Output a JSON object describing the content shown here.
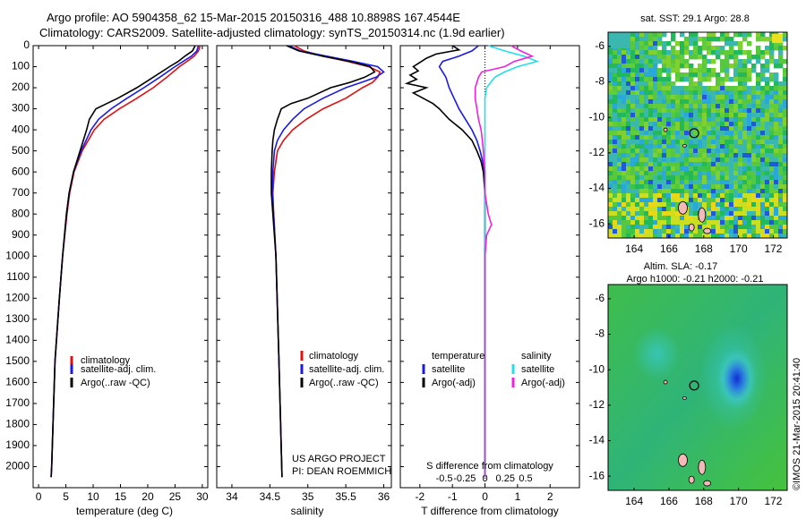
{
  "header": {
    "line1": "Argo profile: AO 5904358_62 15-Mar-2015 20150316_488 10.8898S 167.4544E",
    "line2": "Climatology: CARS2009. Satellite-adjusted climatology: synTS_20150314.nc (1.9d earlier)"
  },
  "footer": {
    "project": "US ARGO PROJECT",
    "pi": "PI: DEAN ROEMMICH",
    "imos": "©IMOS 21-Mar-2015 20:41:40"
  },
  "colors": {
    "clim": "#e01010",
    "sat": "#1a1ae6",
    "argo": "#000000",
    "sal_sat": "#22e0e8",
    "sal_argo": "#f020e0"
  },
  "chart_data": [
    {
      "type": "line",
      "id": "temperature",
      "xlabel": "temperature (deg C)",
      "ylim": [
        2100,
        0
      ],
      "xlim": [
        -1,
        31
      ],
      "yticks": [
        0,
        100,
        200,
        300,
        400,
        500,
        600,
        700,
        800,
        900,
        1000,
        1100,
        1200,
        1300,
        1400,
        1500,
        1600,
        1700,
        1800,
        1900,
        2000
      ],
      "xticks": [
        0,
        5,
        10,
        15,
        20,
        25,
        30
      ],
      "legend": [
        "climatology",
        "satellite-adj. clim.",
        "Argo(..raw -QC)"
      ],
      "series": [
        {
          "name": "climatology",
          "color": "clim",
          "depth": [
            0,
            25,
            50,
            75,
            100,
            150,
            200,
            250,
            300,
            350,
            400,
            500,
            600,
            700,
            800,
            1000,
            1200,
            1500,
            2000,
            2050
          ],
          "values": [
            29.6,
            29.3,
            28.5,
            27.2,
            25.8,
            23.5,
            21.0,
            18.0,
            14.8,
            12.0,
            10.2,
            8.0,
            6.5,
            5.7,
            5.2,
            4.4,
            3.8,
            3.0,
            2.4,
            2.3
          ]
        },
        {
          "name": "satellite-adj. clim.",
          "color": "sat",
          "depth": [
            0,
            25,
            50,
            75,
            100,
            150,
            200,
            250,
            300,
            350,
            400,
            500,
            600,
            700,
            800,
            1000,
            1200,
            1500,
            2000,
            2050
          ],
          "values": [
            29.3,
            29.0,
            28.0,
            26.5,
            25.0,
            22.2,
            19.3,
            16.2,
            13.3,
            11.0,
            9.6,
            7.8,
            6.4,
            5.6,
            5.1,
            4.4,
            3.8,
            3.0,
            2.4,
            2.3
          ]
        },
        {
          "name": "Argo(..raw -QC)",
          "color": "argo",
          "depth": [
            0,
            25,
            50,
            75,
            100,
            150,
            200,
            250,
            275,
            300,
            350,
            400,
            500,
            600,
            700,
            800,
            1000,
            1200,
            1500,
            2000,
            2050
          ],
          "values": [
            28.7,
            28.2,
            26.8,
            25.6,
            24.0,
            21.0,
            18.0,
            14.5,
            12.5,
            10.5,
            9.3,
            8.8,
            7.6,
            6.4,
            5.6,
            5.1,
            4.4,
            3.8,
            3.0,
            2.4,
            2.3
          ]
        }
      ]
    },
    {
      "type": "line",
      "id": "salinity",
      "xlabel": "salinity",
      "ylim": [
        2100,
        0
      ],
      "xlim": [
        33.8,
        36.1
      ],
      "xticks": [
        34,
        34.5,
        35,
        35.5,
        36
      ],
      "legend": [
        "climatology",
        "satellite-adj. clim.",
        "Argo(..raw -QC)"
      ],
      "series": [
        {
          "name": "climatology",
          "color": "clim",
          "depth": [
            0,
            25,
            50,
            75,
            100,
            125,
            150,
            175,
            200,
            250,
            300,
            350,
            400,
            450,
            500,
            600,
            700,
            800,
            1000,
            1500,
            2050
          ],
          "values": [
            34.82,
            34.95,
            35.2,
            35.52,
            35.8,
            35.95,
            35.92,
            35.85,
            35.72,
            35.5,
            35.2,
            34.98,
            34.8,
            34.68,
            34.6,
            34.56,
            34.54,
            34.55,
            34.58,
            34.62,
            34.66
          ]
        },
        {
          "name": "satellite-adj. clim.",
          "color": "sat",
          "depth": [
            0,
            25,
            50,
            75,
            100,
            125,
            150,
            175,
            200,
            250,
            300,
            350,
            400,
            450,
            500,
            600,
            700,
            800,
            1000,
            1500,
            2050
          ],
          "values": [
            34.75,
            34.9,
            35.25,
            35.6,
            35.92,
            36.0,
            35.9,
            35.7,
            35.5,
            35.2,
            34.95,
            34.8,
            34.68,
            34.6,
            34.56,
            34.54,
            34.53,
            34.55,
            34.58,
            34.62,
            34.66
          ]
        },
        {
          "name": "Argo(..raw -QC)",
          "color": "argo",
          "depth": [
            0,
            25,
            50,
            75,
            100,
            125,
            150,
            175,
            200,
            250,
            275,
            300,
            350,
            400,
            450,
            500,
            600,
            700,
            800,
            1000,
            1500,
            2050
          ],
          "values": [
            34.72,
            34.88,
            35.2,
            35.55,
            35.82,
            35.88,
            35.75,
            35.55,
            35.3,
            35.0,
            34.78,
            34.65,
            34.6,
            34.56,
            34.54,
            34.53,
            34.52,
            34.52,
            34.54,
            34.58,
            34.62,
            34.66
          ]
        }
      ]
    },
    {
      "type": "line",
      "id": "differences",
      "xlabel_bottom": "T difference from climatology",
      "xlabel_top": "S difference from climatology",
      "ylim": [
        2100,
        0
      ],
      "xlim": [
        -2.6,
        2.9
      ],
      "xticks": [
        -2,
        -1,
        0,
        1,
        2
      ],
      "xticks_top": [
        {
          "pos": -1.25,
          "label": "-0.5"
        },
        {
          "pos": -0.625,
          "label": "-0.25"
        },
        {
          "pos": 0,
          "label": "0"
        },
        {
          "pos": 0.625,
          "label": "0.25"
        },
        {
          "pos": 1.25,
          "label": "0.5"
        }
      ],
      "legend_temperature": {
        "title": "temperature",
        "items": [
          "satellite",
          "Argo(-adj)"
        ]
      },
      "legend_salinity": {
        "title": "salinity",
        "items": [
          "satellite",
          "Argo(-adj)"
        ]
      },
      "series": [
        {
          "name": "temperature satellite",
          "color": "sat",
          "depth": [
            0,
            25,
            50,
            75,
            100,
            125,
            150,
            200,
            250,
            300,
            350,
            400,
            450,
            500,
            550,
            600,
            700,
            800,
            1000,
            1500,
            2050
          ],
          "values": [
            -0.2,
            -0.4,
            -0.8,
            -1.3,
            -1.4,
            -1.3,
            -1.2,
            -1.1,
            -0.95,
            -0.8,
            -0.6,
            -0.4,
            -0.25,
            -0.15,
            -0.07,
            -0.02,
            0,
            0,
            0,
            0,
            0
          ]
        },
        {
          "name": "temperature Argo(-adj)",
          "color": "argo",
          "depth": [
            0,
            20,
            40,
            60,
            80,
            100,
            120,
            140,
            160,
            180,
            200,
            225,
            250,
            275,
            300,
            350,
            400,
            450,
            500,
            550,
            600,
            700,
            800,
            1000,
            1500,
            2000,
            2050
          ],
          "values": [
            -1.0,
            -0.8,
            -1.5,
            -1.8,
            -2.0,
            -2.2,
            -2.05,
            -2.3,
            -2.1,
            -2.4,
            -1.8,
            -2.2,
            -1.9,
            -1.6,
            -1.4,
            -1.1,
            -0.7,
            -0.4,
            -0.25,
            -0.12,
            -0.05,
            0,
            0,
            0,
            0,
            0,
            0
          ]
        },
        {
          "name": "salinity satellite",
          "color": "sal_sat",
          "depth": [
            0,
            25,
            50,
            75,
            100,
            125,
            150,
            200,
            250,
            300,
            350,
            400,
            500,
            600,
            700,
            800,
            1000,
            1500,
            2050
          ],
          "values": [
            0.1,
            0.6,
            1.2,
            1.6,
            1.0,
            0.6,
            0.3,
            0.05,
            0,
            0,
            0,
            0,
            0,
            0,
            0,
            0,
            0,
            0,
            0
          ]
        },
        {
          "name": "salinity Argo(-adj)",
          "color": "sal_argo",
          "depth": [
            0,
            25,
            50,
            75,
            100,
            125,
            150,
            200,
            250,
            300,
            350,
            400,
            450,
            500,
            550,
            600,
            700,
            800,
            850,
            900,
            1000,
            1500,
            2050
          ],
          "values": [
            0.8,
            1.1,
            1.45,
            0.9,
            0.6,
            -0.1,
            -0.2,
            -0.3,
            -0.3,
            -0.25,
            -0.2,
            -0.12,
            -0.08,
            -0.05,
            -0.03,
            0,
            0,
            0.1,
            0.2,
            0.05,
            0,
            0,
            0
          ]
        }
      ]
    },
    {
      "type": "heatmap",
      "id": "sst_map",
      "title": "sat. SST: 29.1  Argo: 28.8",
      "xlim": [
        162.5,
        172.8
      ],
      "ylim": [
        -16.8,
        -5.2
      ],
      "xticks": [
        164,
        166,
        168,
        170,
        172
      ],
      "yticks": [
        -6,
        -8,
        -10,
        -12,
        -14,
        -16
      ],
      "marker": {
        "lon": 167.45,
        "lat": -10.89
      }
    },
    {
      "type": "heatmap",
      "id": "sla_map",
      "title_line1": "Altim. SLA: -0.17",
      "title_line2": "Argo h1000: -0.21  h2000: -0.21",
      "xlim": [
        162.5,
        172.8
      ],
      "ylim": [
        -16.8,
        -5.2
      ],
      "xticks": [
        164,
        166,
        168,
        170,
        172
      ],
      "yticks": [
        -6,
        -8,
        -10,
        -12,
        -14,
        -16
      ],
      "marker": {
        "lon": 167.45,
        "lat": -10.89
      }
    }
  ]
}
